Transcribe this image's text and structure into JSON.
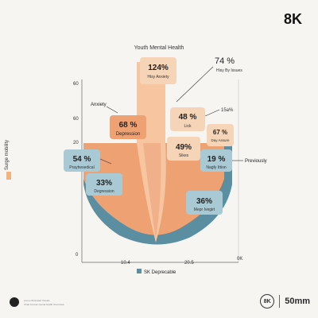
{
  "brand": "8K",
  "footer": {
    "line1": "Lorem illustrated Visuals",
    "line2": "Chart Annual mental health chart data",
    "camera_badge": "8K",
    "camera_spec": "50mm"
  },
  "side_legend": {
    "label": "Surge mobility",
    "color": "#f4b27e"
  },
  "colors": {
    "outer_teal": "#5b8ea0",
    "mid_peach": "#eea274",
    "center_peach": "#f7c5a0",
    "callout_peach": "#f6d4b8",
    "callout_teal": "#a9c9d4",
    "axis": "#666666"
  },
  "chart_data": {
    "type": "area",
    "title": "Youth Mental Health",
    "y_ticks": [
      "60",
      "60",
      "20",
      "0"
    ],
    "x_ticks": [
      "10.4",
      "20.5",
      "0K"
    ],
    "legend": {
      "label": "SK Deprecable",
      "color": "#5b8ea0",
      "position": "bottom"
    },
    "callouts": [
      {
        "value": "124%",
        "label": "Hisy Anxiety",
        "style": "peach"
      },
      {
        "value": "74 %",
        "label": "Hisy By Issues",
        "style": "plain"
      },
      {
        "value": "68 %",
        "label": "Depression",
        "style": "peach",
        "tag": "Anxiety"
      },
      {
        "value": "48 %",
        "label": "Lick",
        "style": "peach",
        "tag": "15a%"
      },
      {
        "value": "67 %",
        "label": "Day Assure",
        "style": "peach"
      },
      {
        "value": "49%",
        "label": "Sikes",
        "style": "peach"
      },
      {
        "value": "54 %",
        "label": "Prayhesedical",
        "style": "teal"
      },
      {
        "value": "19 %",
        "label": "Nagfy Ittion",
        "style": "teal",
        "tag": "Previously"
      },
      {
        "value": "33%",
        "label": "Degression",
        "style": "teal"
      },
      {
        "value": "36%",
        "label": "Mepr Ivegirt",
        "style": "teal"
      }
    ]
  }
}
